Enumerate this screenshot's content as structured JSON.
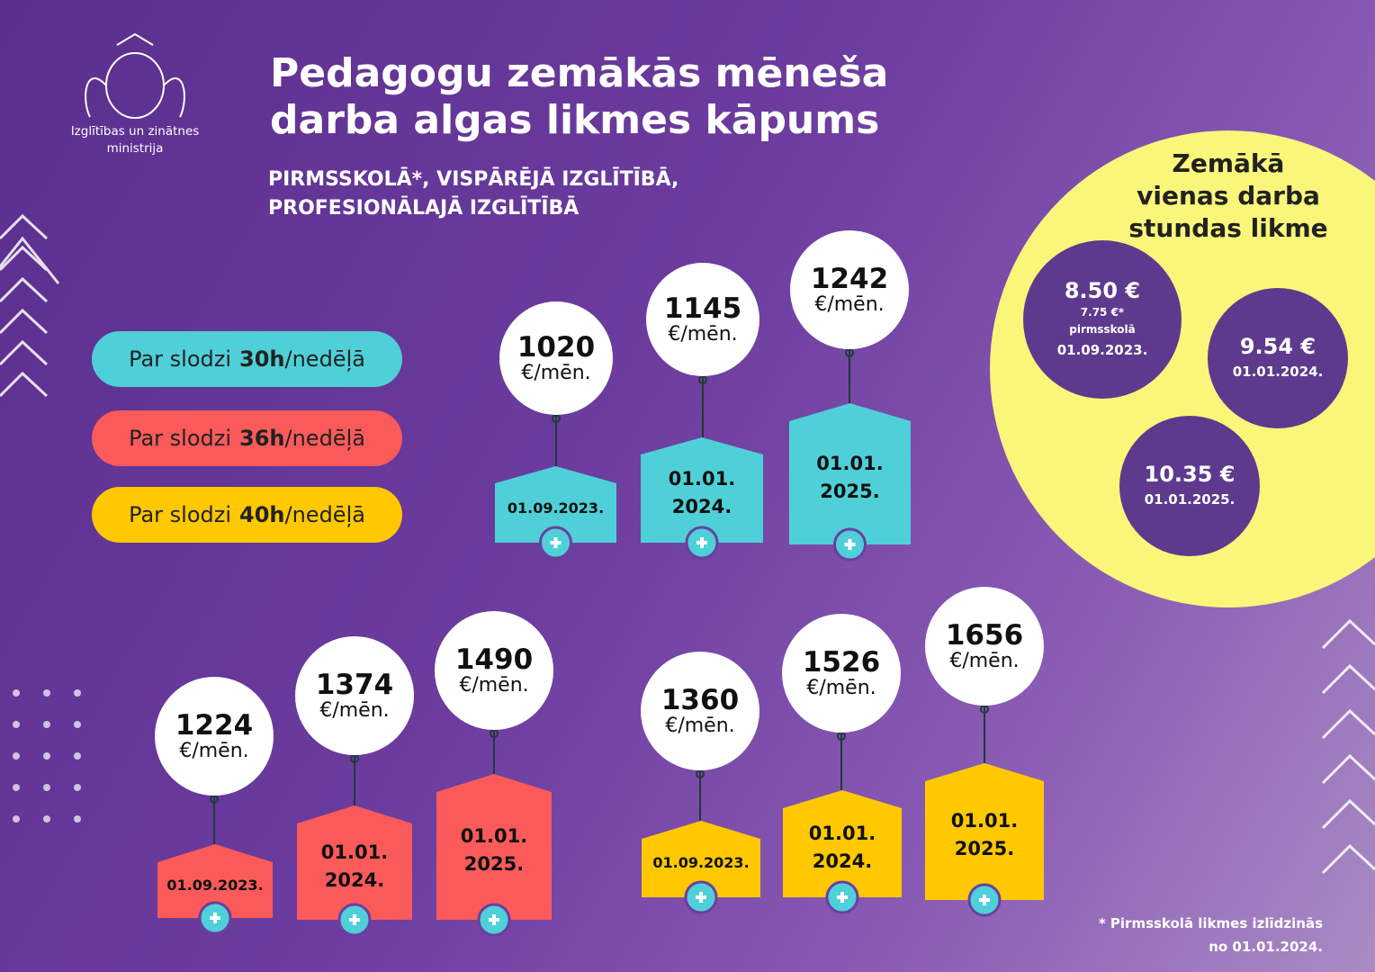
{
  "header": {
    "ministry": [
      "Izglītības un zinātnes",
      "ministrija"
    ],
    "title": [
      "Pedagogu zemākās mēneša",
      "darba algas likmes kāpums"
    ],
    "subtitle": [
      "PIRMSSKOLĀ*, VISPĀRĒJĀ IZGLĪTĪBĀ,",
      "PROFESIONĀLAJĀ IZGLĪTĪBĀ"
    ]
  },
  "groups": [
    {
      "prefix": "Par slodzi",
      "hours": "30h",
      "suffix": "/nedēļā",
      "color": "#4fd0d8",
      "items": [
        {
          "amount": "1020",
          "unit": "€/mēn.",
          "date": [
            "01.09.2023."
          ]
        },
        {
          "amount": "1145",
          "unit": "€/mēn.",
          "date": [
            "01.01.",
            "2024."
          ]
        },
        {
          "amount": "1242",
          "unit": "€/mēn.",
          "date": [
            "01.01.",
            "2025."
          ]
        }
      ]
    },
    {
      "prefix": "Par slodzi",
      "hours": "36h",
      "suffix": "/nedēļā",
      "color": "#fb5a5a",
      "items": [
        {
          "amount": "1224",
          "unit": "€/mēn.",
          "date": [
            "01.09.2023."
          ]
        },
        {
          "amount": "1374",
          "unit": "€/mēn.",
          "date": [
            "01.01.",
            "2024."
          ]
        },
        {
          "amount": "1490",
          "unit": "€/mēn.",
          "date": [
            "01.01.",
            "2025."
          ]
        }
      ]
    },
    {
      "prefix": "Par slodzi",
      "hours": "40h",
      "suffix": "/nedēļā",
      "color": "#ffc800",
      "items": [
        {
          "amount": "1360",
          "unit": "€/mēn.",
          "date": [
            "01.09.2023."
          ]
        },
        {
          "amount": "1526",
          "unit": "€/mēn.",
          "date": [
            "01.01.",
            "2024."
          ]
        },
        {
          "amount": "1656",
          "unit": "€/mēn.",
          "date": [
            "01.01.",
            "2025."
          ]
        }
      ]
    }
  ],
  "hourly": {
    "title": [
      "Zemākā",
      "vienas darba",
      "stundas likme"
    ],
    "rates": [
      {
        "value": "8.50 €",
        "note": [
          "7.75 €*",
          "pirmsskolā"
        ],
        "date": "01.09.2023."
      },
      {
        "value": "9.54 €",
        "date": "01.01.2024."
      },
      {
        "value": "10.35 €",
        "date": "01.01.2025."
      }
    ]
  },
  "footnote": [
    "* Pirmsskolā likmes izlīdzinās",
    "no 01.01.2024."
  ]
}
